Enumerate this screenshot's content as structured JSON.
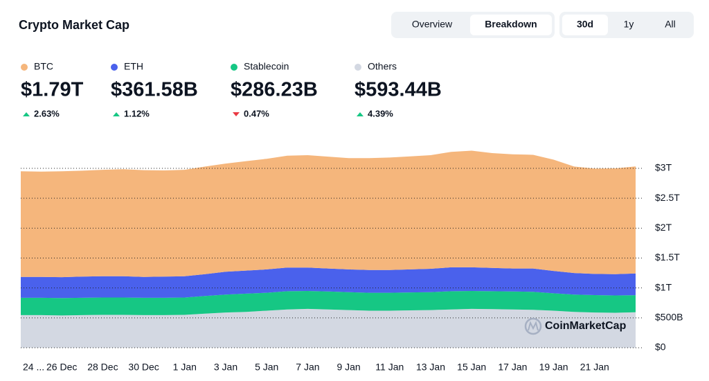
{
  "chart_data": {
    "type": "stacked-area",
    "title": "Crypto Market Cap",
    "tabs": [
      {
        "label": "Overview"
      },
      {
        "label": "Breakdown",
        "selected": true
      }
    ],
    "ranges": [
      {
        "label": "30d",
        "selected": true
      },
      {
        "label": "1y"
      },
      {
        "label": "All"
      }
    ],
    "watermark": "CoinMarketCap",
    "categories": [
      "24 ...",
      null,
      "26 Dec",
      null,
      "28 Dec",
      null,
      "30 Dec",
      null,
      "1 Jan",
      null,
      "3 Jan",
      null,
      "5 Jan",
      null,
      "7 Jan",
      null,
      "9 Jan",
      null,
      "11 Jan",
      null,
      "13 Jan",
      null,
      "15 Jan",
      null,
      "17 Jan",
      null,
      "19 Jan",
      null,
      "21 Jan",
      null,
      null
    ],
    "series": [
      {
        "name": "BTC",
        "color": "#f5b67c",
        "total_label": "$1.79T",
        "change_label": "2.63%",
        "trend": "up",
        "values": [
          1765,
          1760,
          1770,
          1770,
          1780,
          1790,
          1785,
          1775,
          1780,
          1800,
          1810,
          1830,
          1850,
          1870,
          1880,
          1870,
          1860,
          1870,
          1880,
          1890,
          1900,
          1930,
          1950,
          1920,
          1910,
          1900,
          1860,
          1780,
          1760,
          1770,
          1790
        ]
      },
      {
        "name": "ETH",
        "color": "#4a61ec",
        "total_label": "$361.58B",
        "change_label": "1.12%",
        "trend": "up",
        "values": [
          350,
          350,
          350,
          355,
          355,
          355,
          350,
          355,
          355,
          365,
          380,
          385,
          390,
          395,
          390,
          385,
          380,
          380,
          380,
          385,
          390,
          400,
          395,
          390,
          385,
          390,
          375,
          360,
          355,
          355,
          362
        ]
      },
      {
        "name": "Stablecoin",
        "color": "#16c784",
        "total_label": "$286.23B",
        "change_label": "0.47%",
        "trend": "down",
        "values": [
          290,
          290,
          290,
          290,
          290,
          290,
          290,
          290,
          290,
          295,
          300,
          305,
          300,
          305,
          300,
          300,
          300,
          300,
          300,
          300,
          300,
          305,
          300,
          300,
          300,
          300,
          290,
          290,
          290,
          290,
          286
        ]
      },
      {
        "name": "Others",
        "color": "#d3d8e2",
        "total_label": "$593.44B",
        "change_label": "4.39%",
        "trend": "up",
        "values": [
          545,
          545,
          540,
          545,
          550,
          550,
          545,
          545,
          550,
          570,
          590,
          600,
          620,
          640,
          650,
          640,
          630,
          620,
          620,
          625,
          630,
          640,
          650,
          645,
          640,
          635,
          620,
          600,
          590,
          585,
          593
        ]
      }
    ],
    "ylim": [
      0,
      3324
    ],
    "yticks": [
      {
        "value": 0,
        "label": "$0"
      },
      {
        "value": 500,
        "label": "$500B"
      },
      {
        "value": 1000,
        "label": "$1T"
      },
      {
        "value": 1500,
        "label": "$1.5T"
      },
      {
        "value": 2000,
        "label": "$2T"
      },
      {
        "value": 2500,
        "label": "$2.5T"
      },
      {
        "value": 3000,
        "label": "$3T"
      }
    ],
    "grid": true
  }
}
